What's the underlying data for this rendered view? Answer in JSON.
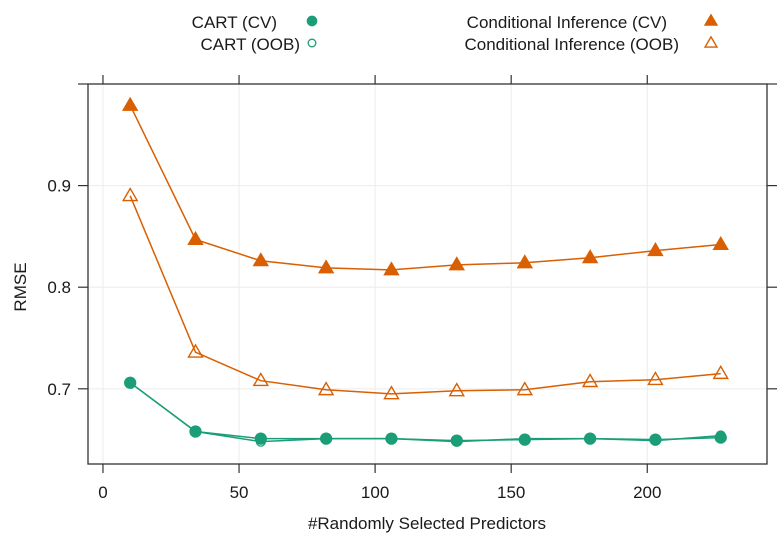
{
  "chart_data": {
    "type": "line",
    "title": "",
    "xlabel": "#Randomly Selected Predictors",
    "ylabel": "RMSE",
    "xlim": [
      -5.5,
      244
    ],
    "ylim": [
      0.626,
      1.0
    ],
    "xticks": [
      0,
      50,
      100,
      150,
      200
    ],
    "xtick_labels": [
      "0",
      "50",
      "100",
      "150",
      "200"
    ],
    "yticks": [
      0.7,
      0.8,
      0.9
    ],
    "ytick_labels": [
      "0.7",
      "0.8",
      "0.9"
    ],
    "right_ticks": [
      0.7,
      0.8,
      0.9,
      1.0
    ],
    "grid": true,
    "legend_position": "top",
    "x": [
      10,
      34,
      58,
      82,
      106,
      130,
      155,
      179,
      203,
      227
    ],
    "series": [
      {
        "name": "CART (CV)",
        "marker": "filled-circle",
        "color": "#1b9e77",
        "values": [
          0.706,
          0.658,
          0.651,
          0.651,
          0.651,
          0.649,
          0.65,
          0.651,
          0.65,
          0.652
        ]
      },
      {
        "name": "CART (OOB)",
        "marker": "open-circle",
        "color": "#1b9e77",
        "values": [
          0.706,
          0.658,
          0.648,
          0.651,
          0.651,
          0.648,
          0.651,
          0.651,
          0.649,
          0.654
        ]
      },
      {
        "name": "Conditional Inference (CV)",
        "marker": "filled-triangle",
        "color": "#d95f02",
        "values": [
          0.979,
          0.847,
          0.826,
          0.819,
          0.817,
          0.822,
          0.824,
          0.829,
          0.836,
          0.842
        ]
      },
      {
        "name": "Conditional Inference (OOB)",
        "marker": "open-triangle",
        "color": "#d95f02",
        "values": [
          0.89,
          0.736,
          0.708,
          0.699,
          0.695,
          0.698,
          0.699,
          0.707,
          0.709,
          0.715
        ]
      }
    ]
  }
}
